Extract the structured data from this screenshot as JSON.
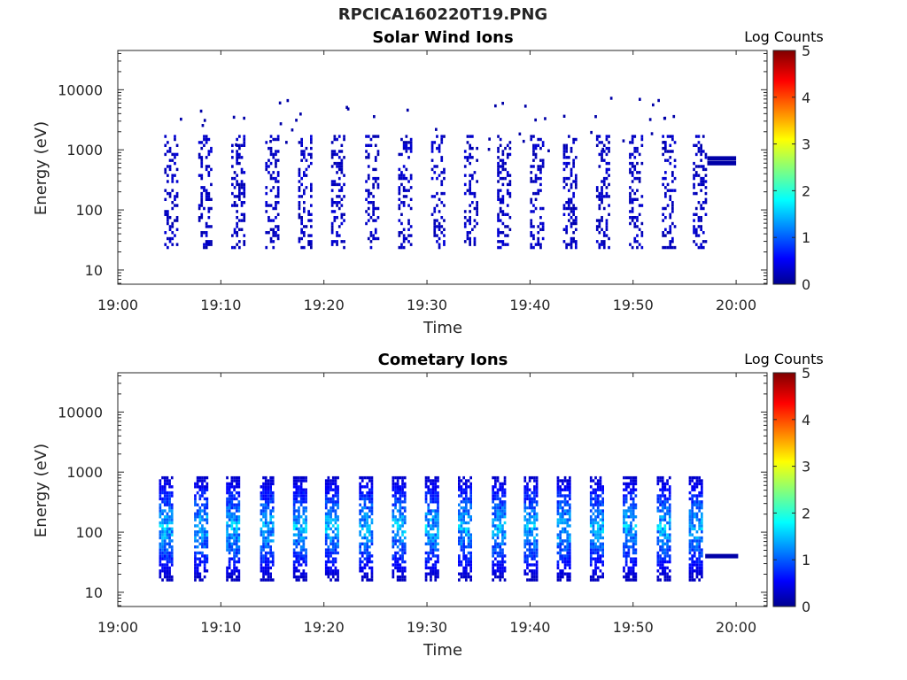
{
  "figure_title": "RPCICA160220T19.PNG",
  "colors": {
    "data_low": "#00008f",
    "axis": "#262626"
  },
  "chart_data": [
    {
      "type": "heatmap",
      "title": "Solar Wind Ions",
      "xlabel": "Time",
      "ylabel": "Energy (eV)",
      "x_ticks": [
        "19:00",
        "19:10",
        "19:20",
        "19:30",
        "19:40",
        "19:50",
        "20:00"
      ],
      "x_range_minutes": [
        0,
        63
      ],
      "y_ticks": [
        "10",
        "100",
        "1000",
        "10000"
      ],
      "y_scale": "log",
      "y_range": [
        5.8,
        45000
      ],
      "colorbar": {
        "label": "Log Counts",
        "range": [
          0,
          5
        ],
        "ticks": [
          "0",
          "1",
          "2",
          "3",
          "4",
          "5"
        ],
        "colormap": "jet"
      },
      "burst_start_minutes": [
        4.5,
        7.8,
        11.0,
        14.3,
        17.5,
        20.7,
        24.0,
        27.2,
        30.4,
        33.6,
        36.8,
        40.0,
        43.2,
        46.4,
        49.6,
        52.8,
        55.8
      ],
      "burst_energy_range_eV": [
        25,
        1800
      ],
      "typical_log_counts": 0.2,
      "flat_band": {
        "start_minute": 57.2,
        "end_minute": 60.0,
        "energies_eV": [
          720,
          600
        ],
        "log_counts": 0.2
      }
    },
    {
      "type": "heatmap",
      "title": "Cometary Ions",
      "xlabel": "Time",
      "ylabel": "Energy (eV)",
      "x_ticks": [
        "19:00",
        "19:10",
        "19:20",
        "19:30",
        "19:40",
        "19:50",
        "20:00"
      ],
      "x_range_minutes": [
        0,
        63
      ],
      "y_ticks": [
        "10",
        "100",
        "1000",
        "10000"
      ],
      "y_scale": "log",
      "y_range": [
        5.8,
        45000
      ],
      "colorbar": {
        "label": "Log Counts",
        "range": [
          0,
          5
        ],
        "ticks": [
          "0",
          "1",
          "2",
          "3",
          "4",
          "5"
        ],
        "colormap": "jet"
      },
      "burst_start_minutes": [
        4.0,
        7.4,
        10.5,
        13.8,
        17.0,
        20.1,
        23.4,
        26.6,
        29.8,
        33.0,
        36.3,
        39.4,
        42.6,
        45.8,
        49.0,
        52.3,
        55.4
      ],
      "burst_energy_range_eV": [
        17,
        950
      ],
      "typical_log_counts": 1.0,
      "peak_log_counts": 1.8,
      "flat_band": {
        "start_minute": 57.0,
        "end_minute": 60.2,
        "energies_eV": [
          40
        ],
        "log_counts": 0.2
      }
    }
  ]
}
